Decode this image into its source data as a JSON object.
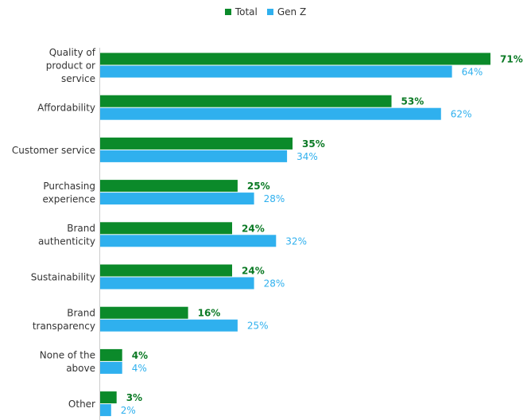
{
  "chart_data": {
    "type": "bar",
    "orientation": "horizontal",
    "categories": [
      [
        "Quality of",
        "product or",
        "service"
      ],
      [
        "Affordability"
      ],
      [
        "Customer service"
      ],
      [
        "Purchasing",
        "experience"
      ],
      [
        "Brand",
        "authenticity"
      ],
      [
        "Sustainability"
      ],
      [
        "Brand",
        "transparency"
      ],
      [
        "None of the",
        "above"
      ],
      [
        "Other"
      ]
    ],
    "series": [
      {
        "name": "Total",
        "color": "#0b8a2a",
        "values": [
          71,
          53,
          35,
          25,
          24,
          24,
          16,
          4,
          3
        ]
      },
      {
        "name": "Gen Z",
        "color": "#2fb0ee",
        "values": [
          64,
          62,
          34,
          28,
          32,
          28,
          25,
          4,
          2
        ]
      }
    ],
    "value_suffix": "%",
    "xlim": [
      0,
      73
    ],
    "legend_position": "top-center",
    "grid": false
  }
}
